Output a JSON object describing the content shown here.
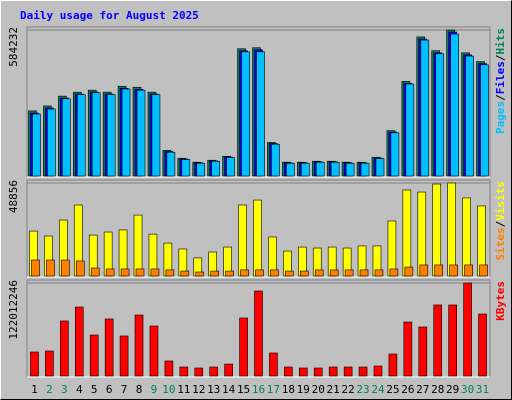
{
  "separator": "/",
  "chart_data": [
    {
      "type": "bar",
      "title": "Daily usage for August 2025",
      "ylim": [
        0,
        584232
      ],
      "yticks": [
        584232
      ],
      "series": [
        {
          "name": "Hits",
          "color": "#00805C",
          "values": [
            260500,
            280300,
            319700,
            335500,
            343400,
            335500,
            359200,
            355200,
            335500,
            102600,
            71100,
            55300,
            63200,
            79000,
            509200,
            513200,
            134200,
            55300,
            55300,
            59200,
            59200,
            55300,
            55300,
            75000,
            181600,
            379000,
            556600,
            501300,
            584232,
            493000,
            457900
          ]
        },
        {
          "name": "Files",
          "color": "#0000FF",
          "values": [
            252000,
            272000,
            312000,
            328000,
            336000,
            328000,
            351000,
            347000,
            328000,
            98000,
            68000,
            53000,
            61000,
            76000,
            501000,
            505000,
            130000,
            53000,
            53000,
            57000,
            57000,
            53000,
            53000,
            72000,
            176000,
            371000,
            548000,
            493000,
            576000,
            485000,
            450000
          ]
        },
        {
          "name": "Pages",
          "color": "#00C0FF",
          "values": [
            248000,
            268000,
            309000,
            326000,
            333000,
            326000,
            348000,
            343000,
            326000,
            95000,
            66000,
            51000,
            59000,
            74000,
            497000,
            497000,
            127000,
            51000,
            51000,
            55000,
            55000,
            51000,
            51000,
            70000,
            173000,
            368000,
            544000,
            489000,
            568000,
            480000,
            445000
          ]
        }
      ]
    },
    {
      "type": "bar",
      "ylim": [
        0,
        48856
      ],
      "yticks": [
        48856
      ],
      "series": [
        {
          "name": "Visits",
          "color": "#FFFF00",
          "values": [
            23600,
            21000,
            29400,
            37300,
            21500,
            23100,
            24200,
            32000,
            22000,
            17300,
            14200,
            9500,
            12600,
            15200,
            37300,
            39900,
            20500,
            13100,
            15200,
            14700,
            15200,
            14700,
            15800,
            15800,
            28900,
            45200,
            44100,
            48300,
            48856,
            41000,
            36800
          ]
        },
        {
          "name": "Sites",
          "color": "#FF8000",
          "values": [
            8400,
            8400,
            8400,
            7900,
            4200,
            3700,
            3700,
            3700,
            3700,
            3200,
            2600,
            2100,
            2600,
            2600,
            3200,
            3200,
            3200,
            2600,
            2600,
            3200,
            3200,
            3200,
            3200,
            3200,
            3700,
            4700,
            5800,
            5800,
            5800,
            5800,
            5800
          ]
        }
      ]
    },
    {
      "type": "bar",
      "ylim": [
        0,
        122012246
      ],
      "yticks": [
        122012246
      ],
      "categories": [
        "1",
        "2",
        "3",
        "4",
        "5",
        "6",
        "7",
        "8",
        "9",
        "10",
        "11",
        "12",
        "13",
        "14",
        "15",
        "16",
        "17",
        "18",
        "19",
        "20",
        "21",
        "22",
        "23",
        "24",
        "25",
        "26",
        "27",
        "28",
        "29",
        "30",
        "31"
      ],
      "category_colors": [
        "#000000",
        "#00805C",
        "#00805C",
        "#000000",
        "#000000",
        "#000000",
        "#000000",
        "#000000",
        "#00805C",
        "#00805C",
        "#000000",
        "#000000",
        "#000000",
        "#000000",
        "#000000",
        "#00805C",
        "#00805C",
        "#000000",
        "#000000",
        "#000000",
        "#000000",
        "#000000",
        "#00805C",
        "#00805C",
        "#000000",
        "#000000",
        "#000000",
        "#000000",
        "#000000",
        "#00805C",
        "#00805C"
      ],
      "series": [
        {
          "name": "KBytes",
          "color": "#FF0000",
          "values": [
            31500000,
            32800000,
            72200000,
            90500000,
            53800000,
            74800000,
            52500000,
            80000000,
            65600000,
            19700000,
            11800000,
            10500000,
            11800000,
            15700000,
            76100000,
            111500000,
            30200000,
            11800000,
            10500000,
            10500000,
            11800000,
            11800000,
            11800000,
            13100000,
            28900000,
            70800000,
            64300000,
            93200000,
            93200000,
            122012246,
            81300000
          ]
        }
      ]
    }
  ]
}
